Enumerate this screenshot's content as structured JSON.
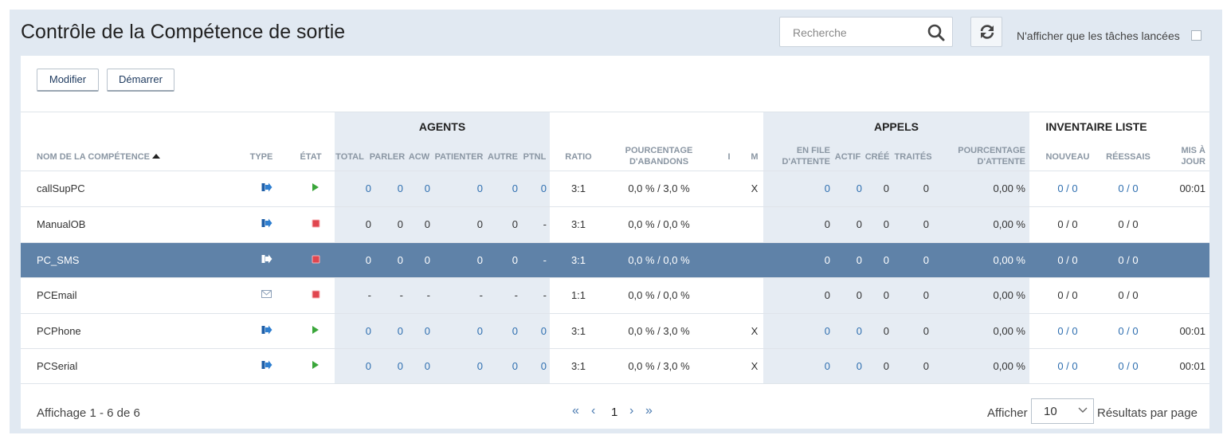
{
  "header": {
    "title": "Contrôle de la Compétence de sortie",
    "search_placeholder": "Recherche",
    "only_launched_label": "N'afficher que les tâches lancées"
  },
  "toolbar": {
    "modify_label": "Modifier",
    "start_label": "Démarrer"
  },
  "groups": {
    "agents": "AGENTS",
    "calls": "APPELS",
    "inventory": "INVENTAIRE LISTE"
  },
  "columns": {
    "name": "NOM DE LA COMPÉTENCE",
    "type": "TYPE",
    "state": "ÉTAT",
    "total": "TOTAL",
    "talk": "PARLER",
    "acw": "ACW",
    "wait": "PATIENTER",
    "other": "AUTRE",
    "ptnl": "PTNL",
    "ratio": "RATIO",
    "abandon_1": "POURCENTAGE",
    "abandon_2": "D'ABANDONS",
    "i": "I",
    "m": "M",
    "queue_1": "EN FILE",
    "queue_2": "D'ATTENTE",
    "active": "ACTIF",
    "created": "CRÉÉ",
    "processed": "TRAITÉS",
    "waitpct_1": "POURCENTAGE",
    "waitpct_2": "D'ATTENTE",
    "new": "NOUVEAU",
    "retries": "RÉESSAIS",
    "updated_1": "MIS À",
    "updated_2": "JOUR"
  },
  "rows": [
    {
      "name": "callSupPC",
      "type": "phone",
      "state": "running",
      "total": "0",
      "talk": "0",
      "acw": "0",
      "wait": "0",
      "other": "0",
      "ptnl": "0",
      "ratio": "3:1",
      "abandon": "0,0 % / 3,0 %",
      "i": "",
      "m": "X",
      "queue": "0",
      "active": "0",
      "created": "0",
      "processed": "0",
      "waitpct": "0,00 %",
      "new": "0 / 0",
      "retries": "0 / 0",
      "updated": "00:01",
      "linked": true,
      "selected": false
    },
    {
      "name": "ManualOB",
      "type": "phone",
      "state": "stopped",
      "total": "0",
      "talk": "0",
      "acw": "0",
      "wait": "0",
      "other": "0",
      "ptnl": "-",
      "ratio": "3:1",
      "abandon": "0,0 % / 0,0 %",
      "i": "",
      "m": "",
      "queue": "0",
      "active": "0",
      "created": "0",
      "processed": "0",
      "waitpct": "0,00 %",
      "new": "0 / 0",
      "retries": "0 / 0",
      "updated": "",
      "linked": false,
      "selected": false
    },
    {
      "name": "PC_SMS",
      "type": "phone",
      "state": "stopped",
      "total": "0",
      "talk": "0",
      "acw": "0",
      "wait": "0",
      "other": "0",
      "ptnl": "-",
      "ratio": "3:1",
      "abandon": "0,0 % / 0,0 %",
      "i": "",
      "m": "",
      "queue": "0",
      "active": "0",
      "created": "0",
      "processed": "0",
      "waitpct": "0,00 %",
      "new": "0 / 0",
      "retries": "0 / 0",
      "updated": "",
      "linked": false,
      "selected": true
    },
    {
      "name": "PCEmail",
      "type": "email",
      "state": "stopped",
      "total": "-",
      "talk": "-",
      "acw": "-",
      "wait": "-",
      "other": "-",
      "ptnl": "-",
      "ratio": "1:1",
      "abandon": "0,0 % / 0,0 %",
      "i": "",
      "m": "",
      "queue": "0",
      "active": "0",
      "created": "0",
      "processed": "0",
      "waitpct": "0,00 %",
      "new": "0 / 0",
      "retries": "0 / 0",
      "updated": "",
      "linked": false,
      "selected": false
    },
    {
      "name": "PCPhone",
      "type": "phone",
      "state": "running",
      "total": "0",
      "talk": "0",
      "acw": "0",
      "wait": "0",
      "other": "0",
      "ptnl": "0",
      "ratio": "3:1",
      "abandon": "0,0 % / 3,0 %",
      "i": "",
      "m": "X",
      "queue": "0",
      "active": "0",
      "created": "0",
      "processed": "0",
      "waitpct": "0,00 %",
      "new": "0 / 0",
      "retries": "0 / 0",
      "updated": "00:01",
      "linked": true,
      "selected": false
    },
    {
      "name": "PCSerial",
      "type": "phone",
      "state": "running",
      "total": "0",
      "talk": "0",
      "acw": "0",
      "wait": "0",
      "other": "0",
      "ptnl": "0",
      "ratio": "3:1",
      "abandon": "0,0 % / 3,0 %",
      "i": "",
      "m": "X",
      "queue": "0",
      "active": "0",
      "created": "0",
      "processed": "0",
      "waitpct": "0,00 %",
      "new": "0 / 0",
      "retries": "0 / 0",
      "updated": "00:01",
      "linked": true,
      "selected": false
    }
  ],
  "footer": {
    "showing": "Affichage 1 - 6 de 6",
    "current_page": "1",
    "show_label": "Afficher",
    "page_size": "10",
    "per_page_label": "Résultats par page"
  },
  "colors": {
    "selected_row": "#5f82a8",
    "link": "#2f6fb0",
    "running": "#3aa63a",
    "stopped": "#e0464f",
    "band": "#e6ecf3"
  }
}
